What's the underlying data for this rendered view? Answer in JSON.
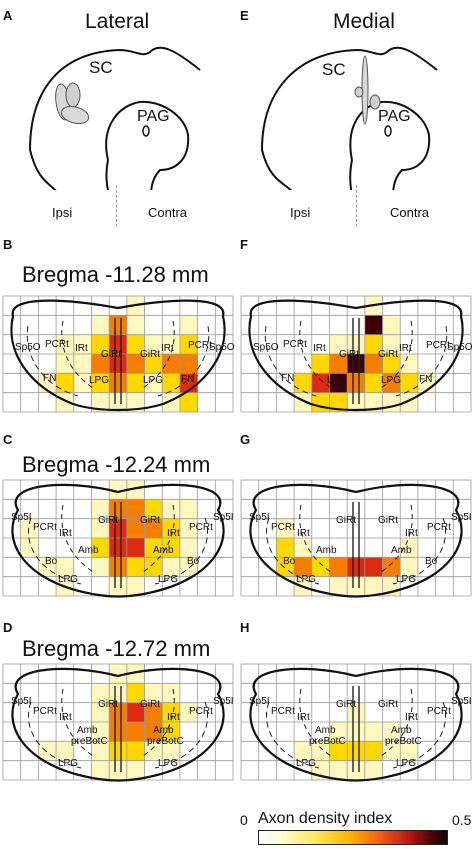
{
  "labels": {
    "A": "A",
    "B": "B",
    "C": "C",
    "D": "D",
    "E": "E",
    "F": "F",
    "G": "G",
    "H": "H"
  },
  "columns": {
    "left": "Lateral",
    "right": "Medial"
  },
  "atlas": {
    "sc": "SC",
    "pag": "PAG"
  },
  "sides": {
    "ipsi": "Ipsi",
    "contra": "Contra"
  },
  "sections": [
    {
      "title": "Bregma -11.28 mm",
      "regions": [
        "Sp5O",
        "PCRt",
        "IRt",
        "GiRt",
        "GiRt",
        "IRt",
        "PCRt",
        "Sp5O",
        "FN",
        "LPG",
        "LPG",
        "FN"
      ]
    },
    {
      "title": "Bregma -12.24 mm",
      "regions": [
        "Sp5I",
        "PCRt",
        "IRt",
        "GiRt",
        "GiRt",
        "IRt",
        "PCRt",
        "Sp5I",
        "Amb",
        "Amb",
        "Bo",
        "Bo",
        "LPG",
        "LPG"
      ]
    },
    {
      "title": "Bregma -12.72 mm",
      "regions": [
        "Sp5I",
        "PCRt",
        "IRt",
        "GiRt",
        "GiRt",
        "IRt",
        "PCRt",
        "Sp5I",
        "Amb",
        "Amb",
        "preBotC",
        "preBotC",
        "LPG",
        "LPG"
      ]
    }
  ],
  "legend": {
    "title": "Axon density index",
    "min": "0",
    "max": "0.5"
  },
  "colors": {
    "low": "#fff7c0",
    "mid": "#ffd800",
    "high": "#f57e00",
    "veryhigh": "#dd2a10",
    "max": "#3a0004",
    "grid": "#999999",
    "outline": "#111111"
  }
}
